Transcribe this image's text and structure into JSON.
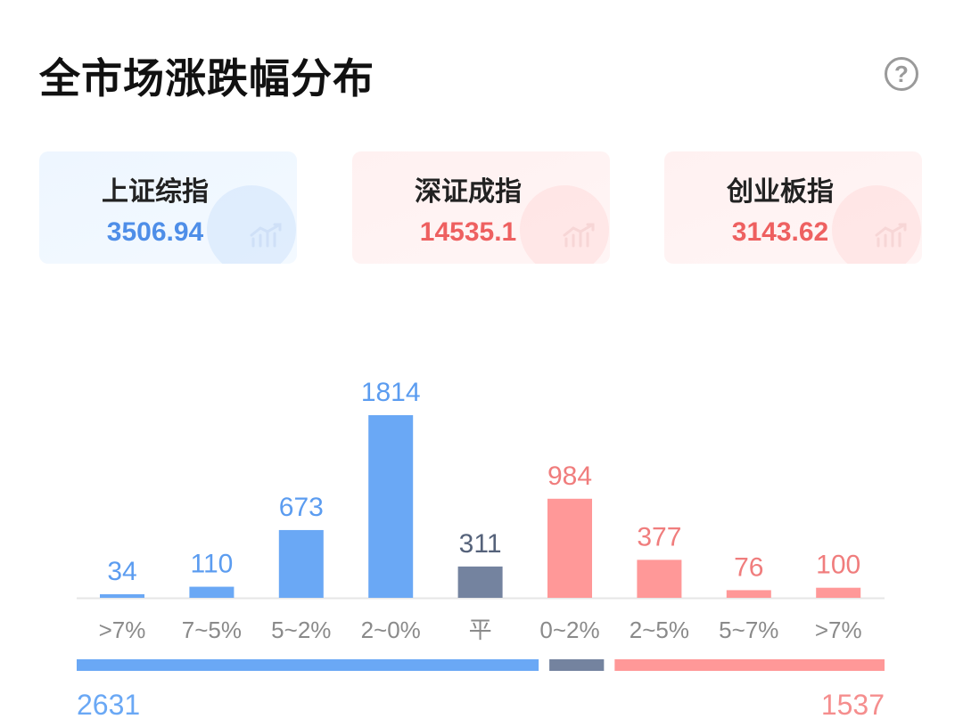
{
  "header": {
    "title": "全市场涨跌幅分布",
    "help_icon": "question-circle-icon",
    "help_symbol": "?"
  },
  "indices": [
    {
      "name": "上证综指",
      "value": "3506.94",
      "color": "#4e8ee8"
    },
    {
      "name": "深证成指",
      "value": "14535.1",
      "color": "#ee6060"
    },
    {
      "name": "创业板指",
      "value": "3143.62",
      "color": "#ee6060"
    }
  ],
  "chart_data": {
    "type": "bar",
    "categories": [
      ">7%",
      "7~5%",
      "5~2%",
      "2~0%",
      "平",
      "0~2%",
      "2~5%",
      "5~7%",
      ">7%"
    ],
    "values": [
      34,
      110,
      673,
      1814,
      311,
      984,
      377,
      76,
      100
    ],
    "groups": [
      "down",
      "down",
      "down",
      "down",
      "flat",
      "up",
      "up",
      "up",
      "up"
    ],
    "colors": {
      "down": "#6aa8f5",
      "flat": "#74839f",
      "up": "#ff9898",
      "down_label": "#5b9cf0",
      "flat_label": "#55627a",
      "up_label": "#f07d7d"
    },
    "ylim": [
      0,
      1814
    ],
    "grid": false,
    "summary": {
      "down_total": 2631,
      "flat_total": 311,
      "up_total": 1537
    }
  }
}
